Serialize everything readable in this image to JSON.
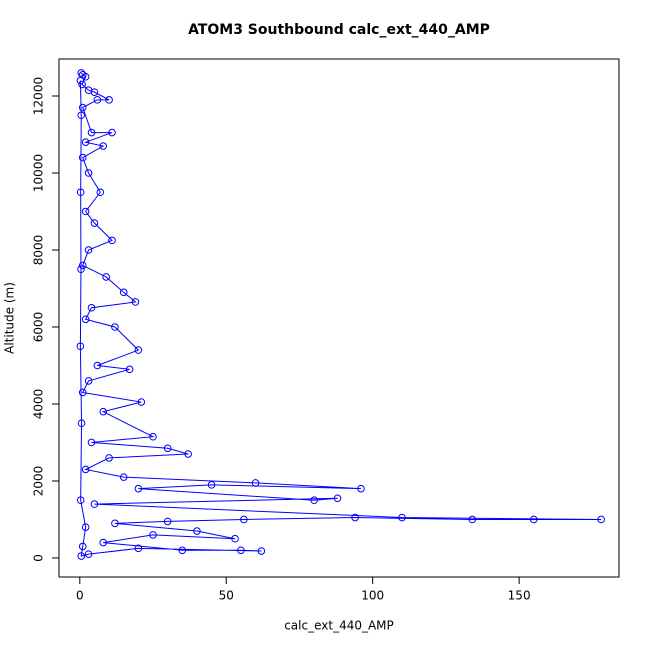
{
  "chart_data": {
    "type": "scatter",
    "title": "ATOM3 Southbound calc_ext_440_AMP",
    "x_label": "calc_ext_440_AMP",
    "y_label": "Altitude (m)",
    "series": [
      {
        "color": "#0000ff",
        "x": [
          0.5,
          1,
          2,
          0.8,
          3,
          5,
          10,
          6,
          1,
          4,
          11,
          2,
          8,
          1,
          3,
          7,
          2,
          5,
          11,
          3,
          1,
          9,
          15,
          19,
          4,
          2,
          12,
          20,
          6,
          17,
          3,
          1,
          21,
          8,
          25,
          4,
          30,
          37,
          10,
          2,
          15,
          60,
          96,
          45,
          20,
          80,
          88,
          5,
          110,
          178,
          155,
          134,
          94,
          56,
          30,
          12,
          40,
          53,
          25,
          8,
          35,
          55,
          62,
          20,
          3,
          0.5,
          1,
          2,
          0.3,
          0.6,
          0.2,
          0.4,
          0.3,
          0.5,
          0.2
        ],
        "values": [
          12600,
          12550,
          12500,
          12300,
          12150,
          12100,
          11900,
          11900,
          11700,
          11050,
          11050,
          10800,
          10700,
          10400,
          10000,
          9500,
          9000,
          8700,
          8250,
          8000,
          7600,
          7300,
          6900,
          6650,
          6500,
          6200,
          6000,
          5400,
          5000,
          4900,
          4600,
          4300,
          4050,
          3800,
          3150,
          3000,
          2850,
          2700,
          2600,
          2300,
          2100,
          1950,
          1800,
          1900,
          1800,
          1500,
          1550,
          1400,
          1050,
          1000,
          1000,
          1000,
          1050,
          1000,
          950,
          900,
          700,
          500,
          600,
          400,
          200,
          200,
          180,
          250,
          100,
          50,
          300,
          800,
          1500,
          3500,
          5500,
          7500,
          9500,
          11500,
          12400
        ]
      }
    ],
    "xlim": [
      -7.1,
      184.1
    ],
    "ylim": [
      -494,
      12961
    ],
    "xticks": [
      0,
      50,
      100,
      150
    ],
    "yticks": [
      0,
      2000,
      4000,
      6000,
      8000,
      10000,
      12000
    ]
  }
}
